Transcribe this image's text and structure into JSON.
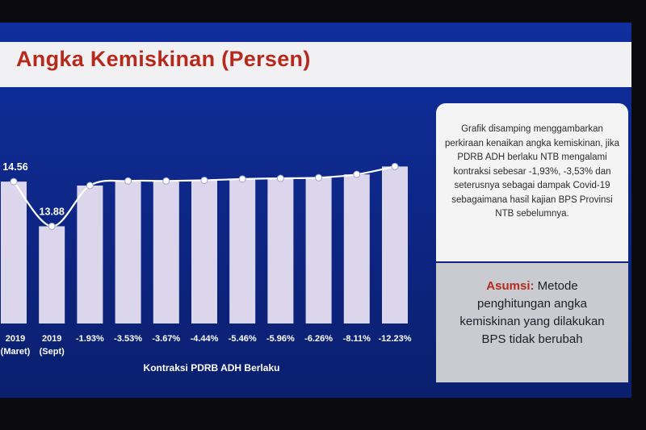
{
  "title": "Angka Kemiskinan (Persen)",
  "colors": {
    "background": "#102a8a",
    "bar": "#dcd6ec",
    "line": "#ffffff",
    "title": "#b52a1d"
  },
  "chart_data": {
    "type": "bar",
    "categories": [
      "2019 (Maret)",
      "2019 (Sept)",
      "-1.93%",
      "-3.53%",
      "-3.67%",
      "-4.44%",
      "-5.46%",
      "-5.96%",
      "-6.26%",
      "-8.11%",
      "-12.23%"
    ],
    "category_lines": [
      [
        "2019",
        "(Maret)"
      ],
      [
        "2019",
        "(Sept)"
      ],
      [
        "-1.93%"
      ],
      [
        "-3.53%"
      ],
      [
        "-3.67%"
      ],
      [
        "-4.44%"
      ],
      [
        "-5.46%"
      ],
      [
        "-5.96%"
      ],
      [
        "-6.26%"
      ],
      [
        "-8.11%"
      ],
      [
        "-12.23%"
      ]
    ],
    "values": [
      14.56,
      13.88,
      14.5,
      14.57,
      14.57,
      14.58,
      14.6,
      14.61,
      14.62,
      14.67,
      14.79
    ],
    "data_labels": [
      "14.56",
      "13.88",
      "",
      "",
      "",
      "",
      "",
      "",
      "",
      "",
      ""
    ],
    "line_series": true,
    "xlabel": "Kontraksi PDRB ADH Berlaku",
    "ylabel": "",
    "ylim": [
      12.4,
      15.2
    ],
    "grid": false
  },
  "note": {
    "text": "Grafik disamping menggambarkan perkiraan kenaikan angka kemiskinan, jika PDRB ADH berlaku NTB mengalami kontraksi sebesar -1,93%, -3,53% dan seterusnya sebagai dampak Covid-19 sebagaimana hasil kajian BPS Provinsi NTB sebelumnya."
  },
  "assumption": {
    "label": "Asumsi:",
    "text": "Metode penghitungan angka kemiskinan yang dilakukan BPS tidak berubah"
  }
}
